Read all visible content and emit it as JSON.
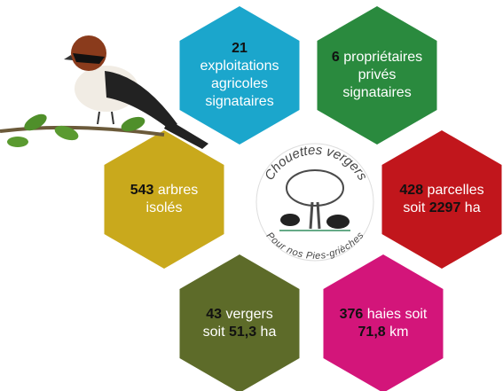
{
  "logo": {
    "title": "Chouettes vergers",
    "subtitle": "Pour nos Pies-grièches"
  },
  "hexagons": [
    {
      "color": "#1ba6cc",
      "lines": [
        [
          {
            "number": "21"
          }
        ],
        [
          {
            "text": "exploitations"
          }
        ],
        [
          {
            "text": "agricoles"
          }
        ],
        [
          {
            "text": "signataires"
          }
        ]
      ]
    },
    {
      "color": "#2a8a3e",
      "lines": [
        [
          {
            "number": "6"
          },
          {
            "text": " propriétaires"
          }
        ],
        [
          {
            "text": "privés"
          }
        ],
        [
          {
            "text": "signataires"
          }
        ]
      ]
    },
    {
      "color": "#c9a91c",
      "lines": [
        [
          {
            "number": "543"
          },
          {
            "text": " arbres"
          }
        ],
        [
          {
            "text": "isolés"
          }
        ]
      ]
    },
    {
      "color": "#c1161c",
      "lines": [
        [
          {
            "number": "428"
          },
          {
            "text": " parcelles"
          }
        ],
        [
          {
            "text": "soit "
          },
          {
            "number": "2297"
          },
          {
            "text": " ha"
          }
        ]
      ]
    },
    {
      "color": "#5d6b29",
      "lines": [
        [
          {
            "number": "43"
          },
          {
            "text": " vergers"
          }
        ],
        [
          {
            "text": "soit "
          },
          {
            "number": "51,3"
          },
          {
            "text": " ha"
          }
        ]
      ]
    },
    {
      "color": "#d3157a",
      "lines": [
        [
          {
            "number": "376"
          },
          {
            "text": " haies soit"
          }
        ],
        [
          {
            "number": "71,8"
          },
          {
            "text": " km"
          }
        ]
      ]
    }
  ]
}
